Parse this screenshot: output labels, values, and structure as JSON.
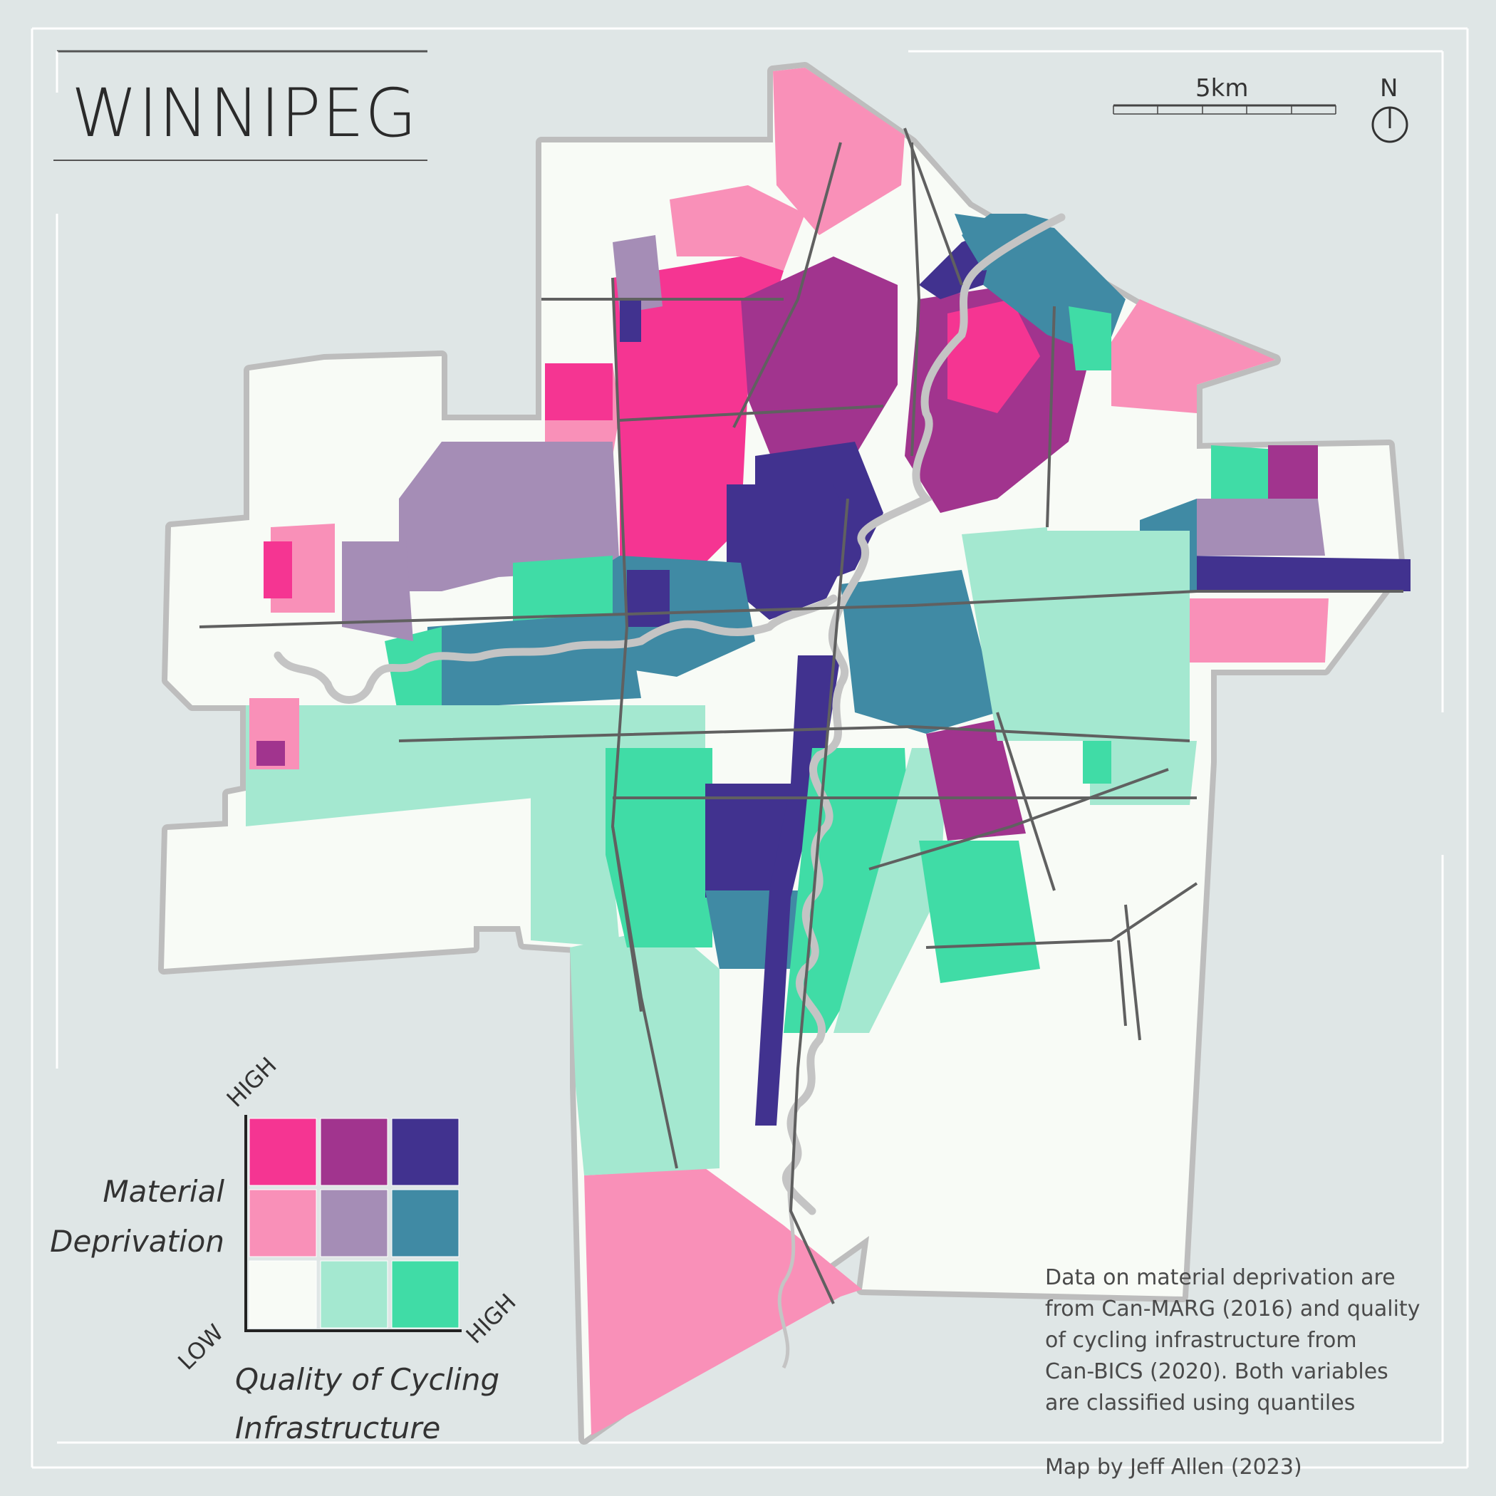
{
  "title": "WINNIPEG",
  "scale": {
    "label": "5km"
  },
  "north": {
    "label": "N"
  },
  "legend": {
    "y_title_line1": "Material",
    "y_title_line2": "Deprivation",
    "x_title_line1": "Quality of Cycling",
    "x_title_line2": "Infrastructure",
    "y_high": "HIGH",
    "x_high": "HIGH",
    "low": "LOW",
    "matrix": [
      [
        "#f53592",
        "#a1348e",
        "#41328f"
      ],
      [
        "#f990b8",
        "#a58db6",
        "#408aa4"
      ],
      [
        "#f8fbf6",
        "#a4e8d0",
        "#40dca6"
      ]
    ]
  },
  "colors": {
    "background": "#dfe6e6",
    "boundary": "#bdbdbd",
    "river": "#c4c4c4",
    "roads": "#606060"
  },
  "note": {
    "line1": "Data on material deprivation are",
    "line2": "from Can-MARG (2016) and quality",
    "line3": "of cycling infrastructure from",
    "line4": "Can-BICS (2020). Both variables",
    "line5": "are classified using quantiles"
  },
  "credit": "Map by Jeff Allen (2023)"
}
